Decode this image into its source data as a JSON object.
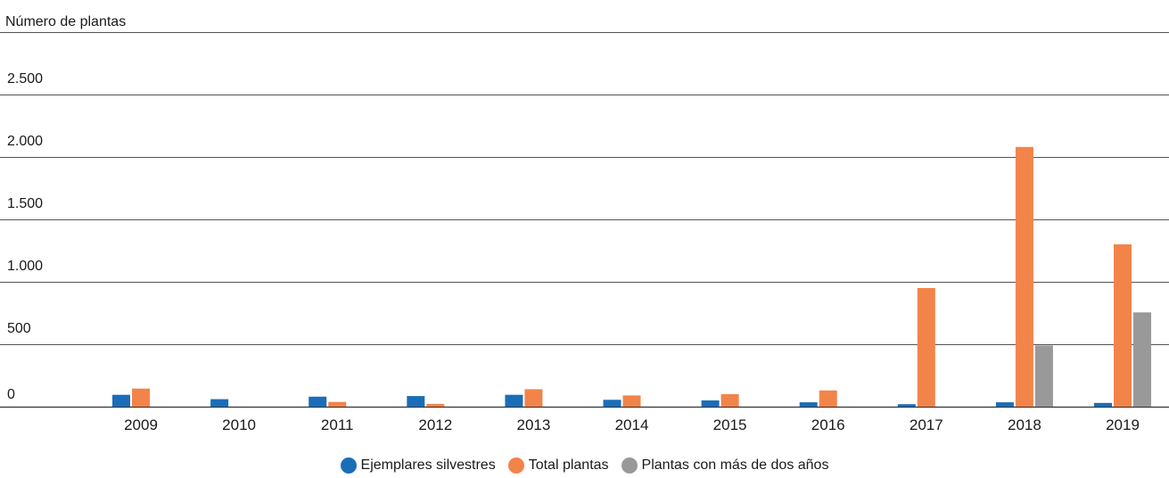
{
  "chart_data": {
    "type": "bar",
    "ylabel": "Número de plantas",
    "categories": [
      "2009",
      "2010",
      "2011",
      "2012",
      "2013",
      "2014",
      "2015",
      "2016",
      "2017",
      "2018",
      "2019"
    ],
    "yticks": [
      {
        "value": 0,
        "label": "0"
      },
      {
        "value": 500,
        "label": "500"
      },
      {
        "value": 1000,
        "label": "1.000"
      },
      {
        "value": 1500,
        "label": "1.500"
      },
      {
        "value": 2000,
        "label": "2.000"
      },
      {
        "value": 2500,
        "label": "2.500"
      }
    ],
    "ylim": [
      0,
      3000
    ],
    "grid": true,
    "legend_position": "bottom-center",
    "series": [
      {
        "name": "Ejemplares silvestres",
        "color": "#1a6eb8",
        "values": [
          95,
          60,
          80,
          85,
          95,
          55,
          50,
          35,
          20,
          35,
          30
        ]
      },
      {
        "name": "Total plantas",
        "color": "#f2844a",
        "values": [
          145,
          0,
          38,
          22,
          140,
          90,
          100,
          130,
          950,
          2080,
          1300
        ]
      },
      {
        "name": "Plantas con más de dos años",
        "color": "#999999",
        "values": [
          0,
          0,
          0,
          0,
          0,
          0,
          0,
          0,
          0,
          490,
          755
        ]
      }
    ]
  }
}
